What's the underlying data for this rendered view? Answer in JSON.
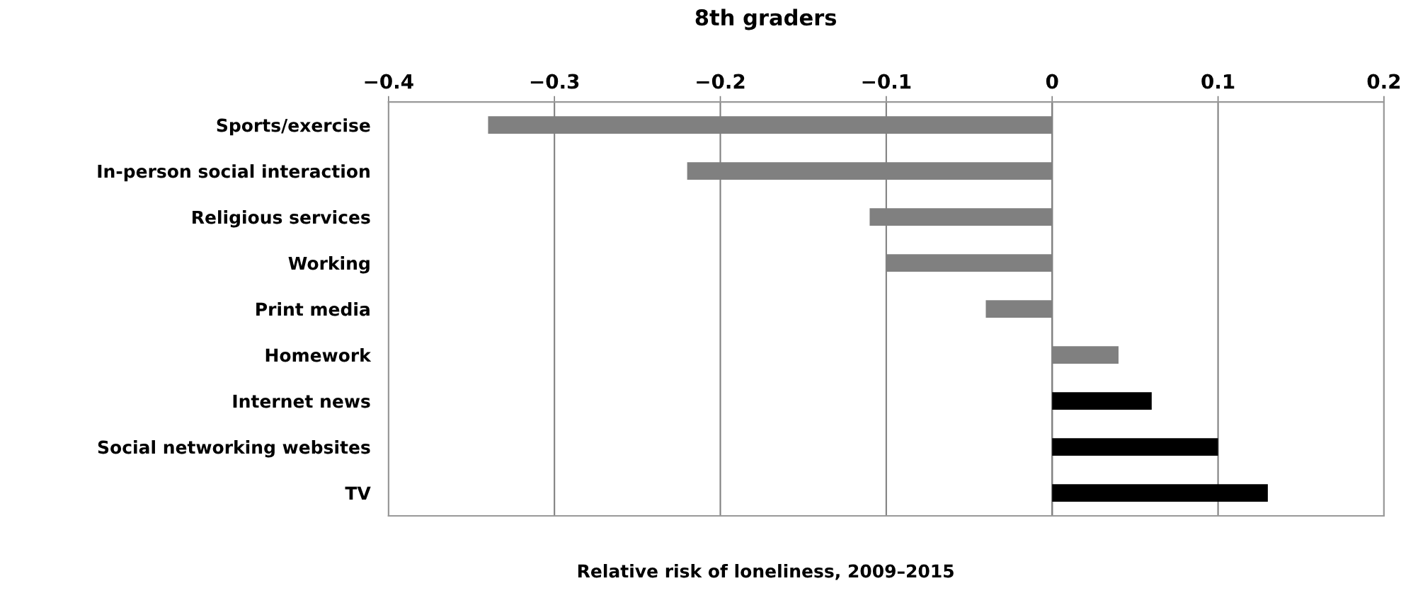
{
  "chart_data": {
    "type": "bar",
    "orientation": "horizontal",
    "title": "8th graders",
    "xlabel": "Relative risk of loneliness, 2009–2015",
    "categories": [
      "Sports/exercise",
      "In-person social interaction",
      "Religious services",
      "Working",
      "Print media",
      "Homework",
      "Internet news",
      "Social networking websites",
      "TV"
    ],
    "values": [
      -0.34,
      -0.22,
      -0.11,
      -0.1,
      -0.04,
      0.04,
      0.06,
      0.1,
      0.13
    ],
    "colors": [
      "#808080",
      "#808080",
      "#808080",
      "#808080",
      "#808080",
      "#808080",
      "#000000",
      "#000000",
      "#000000"
    ],
    "xlim": [
      -0.4,
      0.2
    ],
    "xticks": [
      {
        "value": -0.4,
        "label": "−0.4"
      },
      {
        "value": -0.3,
        "label": "−0.3"
      },
      {
        "value": -0.2,
        "label": "−0.2"
      },
      {
        "value": -0.1,
        "label": "−0.1"
      },
      0,
      0.1,
      0.2
    ],
    "grid": "x"
  }
}
